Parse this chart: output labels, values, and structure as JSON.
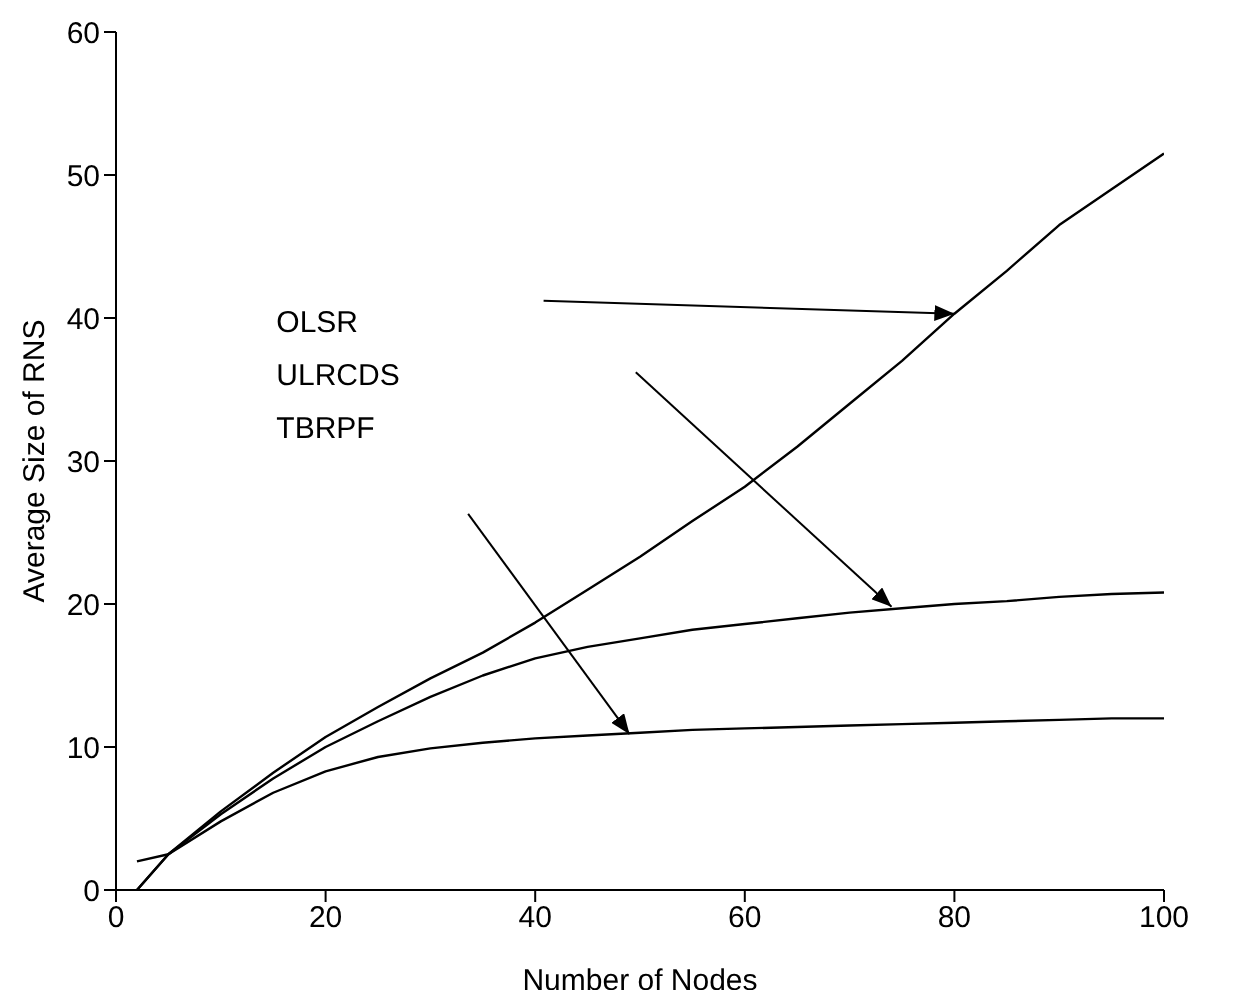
{
  "chart_data": {
    "type": "line",
    "xlabel": "Number of Nodes",
    "ylabel": "Average Size of RNS",
    "xlim": [
      0,
      100
    ],
    "xticks": [
      0,
      20,
      40,
      60,
      80,
      100
    ],
    "ylim": [
      0,
      60
    ],
    "yticks": [
      0,
      10,
      20,
      30,
      40,
      50,
      60
    ],
    "marker": "none",
    "line_style": "solid",
    "x": [
      2,
      5,
      10,
      15,
      20,
      25,
      30,
      35,
      40,
      45,
      50,
      55,
      60,
      65,
      70,
      75,
      80,
      85,
      90,
      95,
      100
    ],
    "series": [
      {
        "color": "#000000",
        "values": [
          0,
          2.5,
          5.5,
          8.2,
          10.7,
          12.8,
          14.8,
          16.6,
          18.7,
          21,
          23.3,
          25.8,
          28.2,
          31,
          34,
          37,
          40.3,
          43.3,
          46.5,
          49,
          51.5
        ]
      },
      {
        "color": "#000000",
        "values": [
          0,
          2.5,
          5.3,
          7.8,
          10,
          11.8,
          13.5,
          15,
          16.2,
          17,
          17.6,
          18.2,
          18.6,
          19,
          19.4,
          19.7,
          20,
          20.2,
          20.5,
          20.7,
          20.8
        ]
      },
      {
        "color": "#000000",
        "values": [
          2,
          2.5,
          4.8,
          6.8,
          8.3,
          9.3,
          9.9,
          10.3,
          10.6,
          10.8,
          11,
          11.2,
          11.3,
          11.4,
          11.5,
          11.6,
          11.7,
          11.8,
          11.9,
          12,
          12
        ]
      }
    ],
    "annotations": [
      "OLSR",
      "ULRCDS",
      "TBRPF"
    ]
  }
}
